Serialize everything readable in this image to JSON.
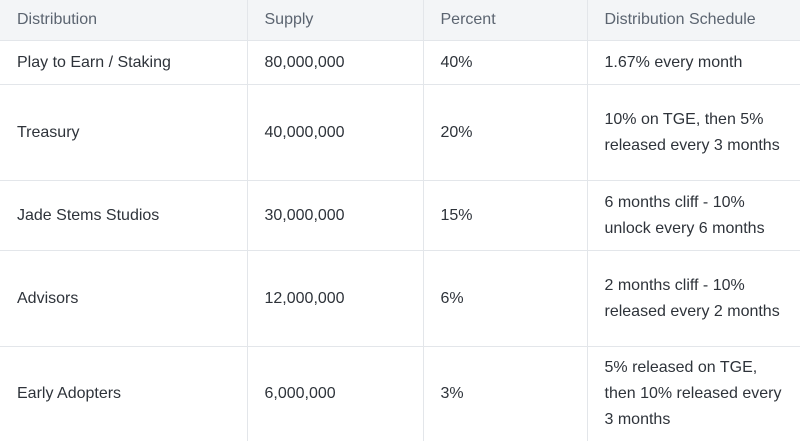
{
  "table": {
    "headers": [
      "Distribution",
      "Supply",
      "Percent",
      "Distribution Schedule"
    ],
    "rows": [
      {
        "distribution": "Play to Earn / Staking",
        "supply": "80,000,000",
        "percent": "40%",
        "schedule": "1.67% every month"
      },
      {
        "distribution": "Treasury",
        "supply": "40,000,000",
        "percent": "20%",
        "schedule": "10% on TGE, then 5% released every 3 months"
      },
      {
        "distribution": "Jade Stems Studios",
        "supply": "30,000,000",
        "percent": "15%",
        "schedule": "6 months cliff - 10% unlock every 6 months"
      },
      {
        "distribution": "Advisors",
        "supply": "12,000,000",
        "percent": "6%",
        "schedule": "2 months cliff -  10% released every 2 months"
      },
      {
        "distribution": "Early Adopters",
        "supply": "6,000,000",
        "percent": "3%",
        "schedule": "5% released on TGE, then 10% released every 3 months"
      }
    ]
  }
}
